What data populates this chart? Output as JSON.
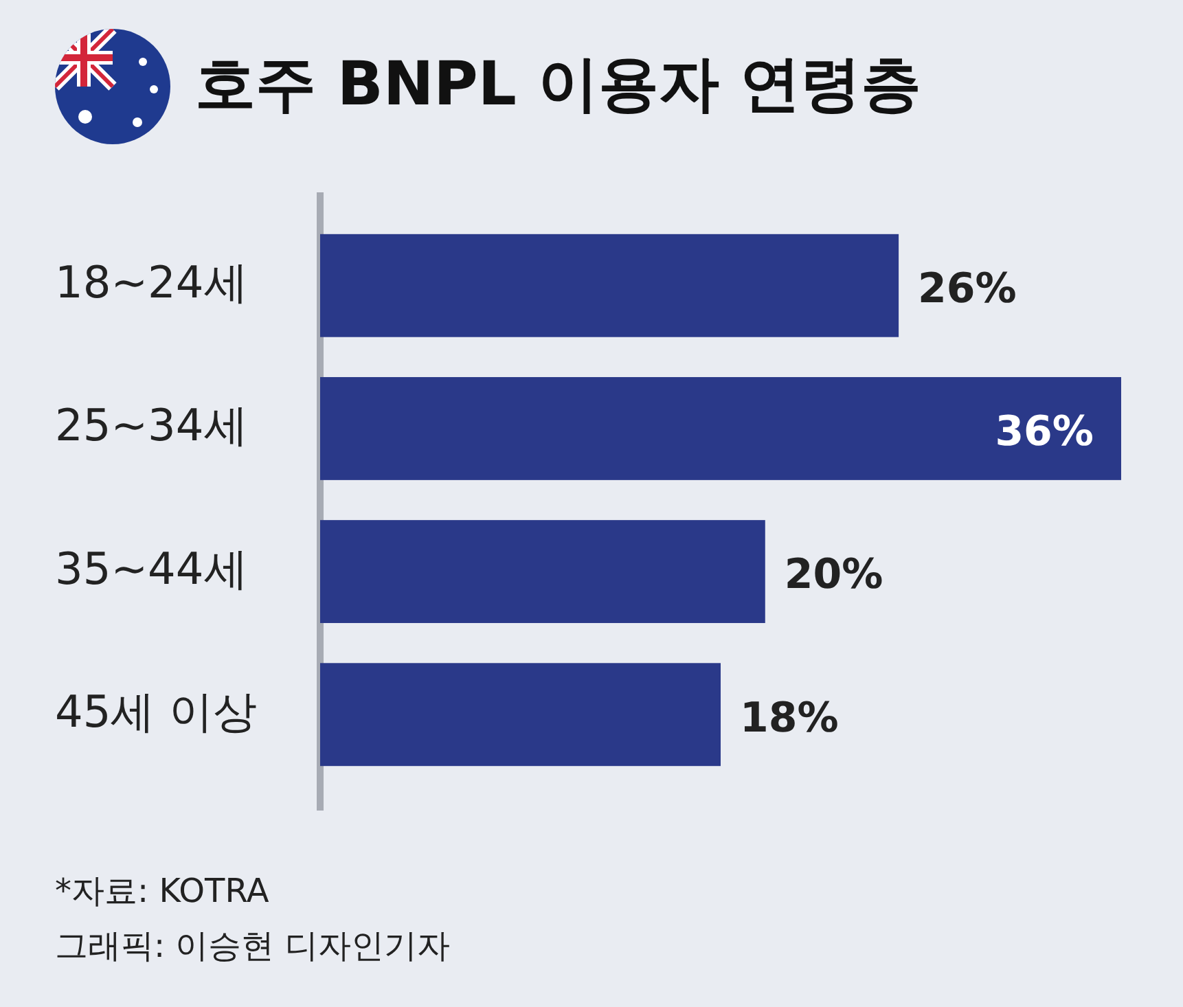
{
  "chart_data": {
    "type": "bar",
    "orientation": "horizontal",
    "title": "호주 BNPL 이용자 연령층",
    "categories": [
      "18~24세",
      "25~34세",
      "35~44세",
      "45세 이상"
    ],
    "values": [
      26,
      36,
      20,
      18
    ],
    "value_labels": [
      "26%",
      "36%",
      "20%",
      "18%"
    ],
    "color": "#2a3989",
    "annotations": [
      "*자료: KOTRA",
      "그래픽: 이승현 디자인기자"
    ]
  }
}
